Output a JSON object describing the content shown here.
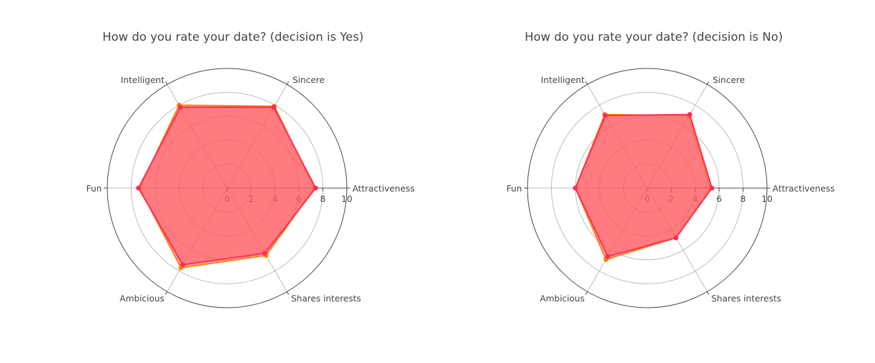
{
  "colors": {
    "fill": "#ff5a5f",
    "series_female": "#ff7f0e",
    "series_male": "#ff2d55",
    "grid": "#bbbbbb",
    "outer": "#444444"
  },
  "chart_data": [
    {
      "type": "radar",
      "title": "How do you rate your date? (decision is Yes)",
      "axes": [
        "Attractiveness",
        "Sincere",
        "Intelligent",
        "Fun",
        "Ambicious",
        "Shares interests"
      ],
      "radial_range": [
        0,
        10
      ],
      "radial_ticks": [
        "0",
        "2",
        "4",
        "6",
        "8",
        "10"
      ],
      "grid": true,
      "series": [
        {
          "values": [
            7.3,
            7.9,
            8.0,
            7.3,
            7.7,
            6.5
          ]
        },
        {
          "values": [
            7.4,
            7.8,
            7.8,
            7.4,
            7.4,
            6.3
          ]
        }
      ]
    },
    {
      "type": "radar",
      "title": "How do you rate your date? (decision is No)",
      "axes": [
        "Attractiveness",
        "Sincere",
        "Intelligent",
        "Fun",
        "Ambicious",
        "Shares interests"
      ],
      "radial_range": [
        0,
        10
      ],
      "radial_ticks": [
        "0",
        "2",
        "4",
        "6",
        "8",
        "10"
      ],
      "grid": true,
      "series": [
        {
          "values": [
            5.3,
            7.0,
            7.1,
            6.0,
            6.9,
            4.8
          ]
        },
        {
          "values": [
            5.4,
            7.1,
            7.0,
            6.0,
            6.6,
            4.8
          ]
        }
      ]
    }
  ]
}
